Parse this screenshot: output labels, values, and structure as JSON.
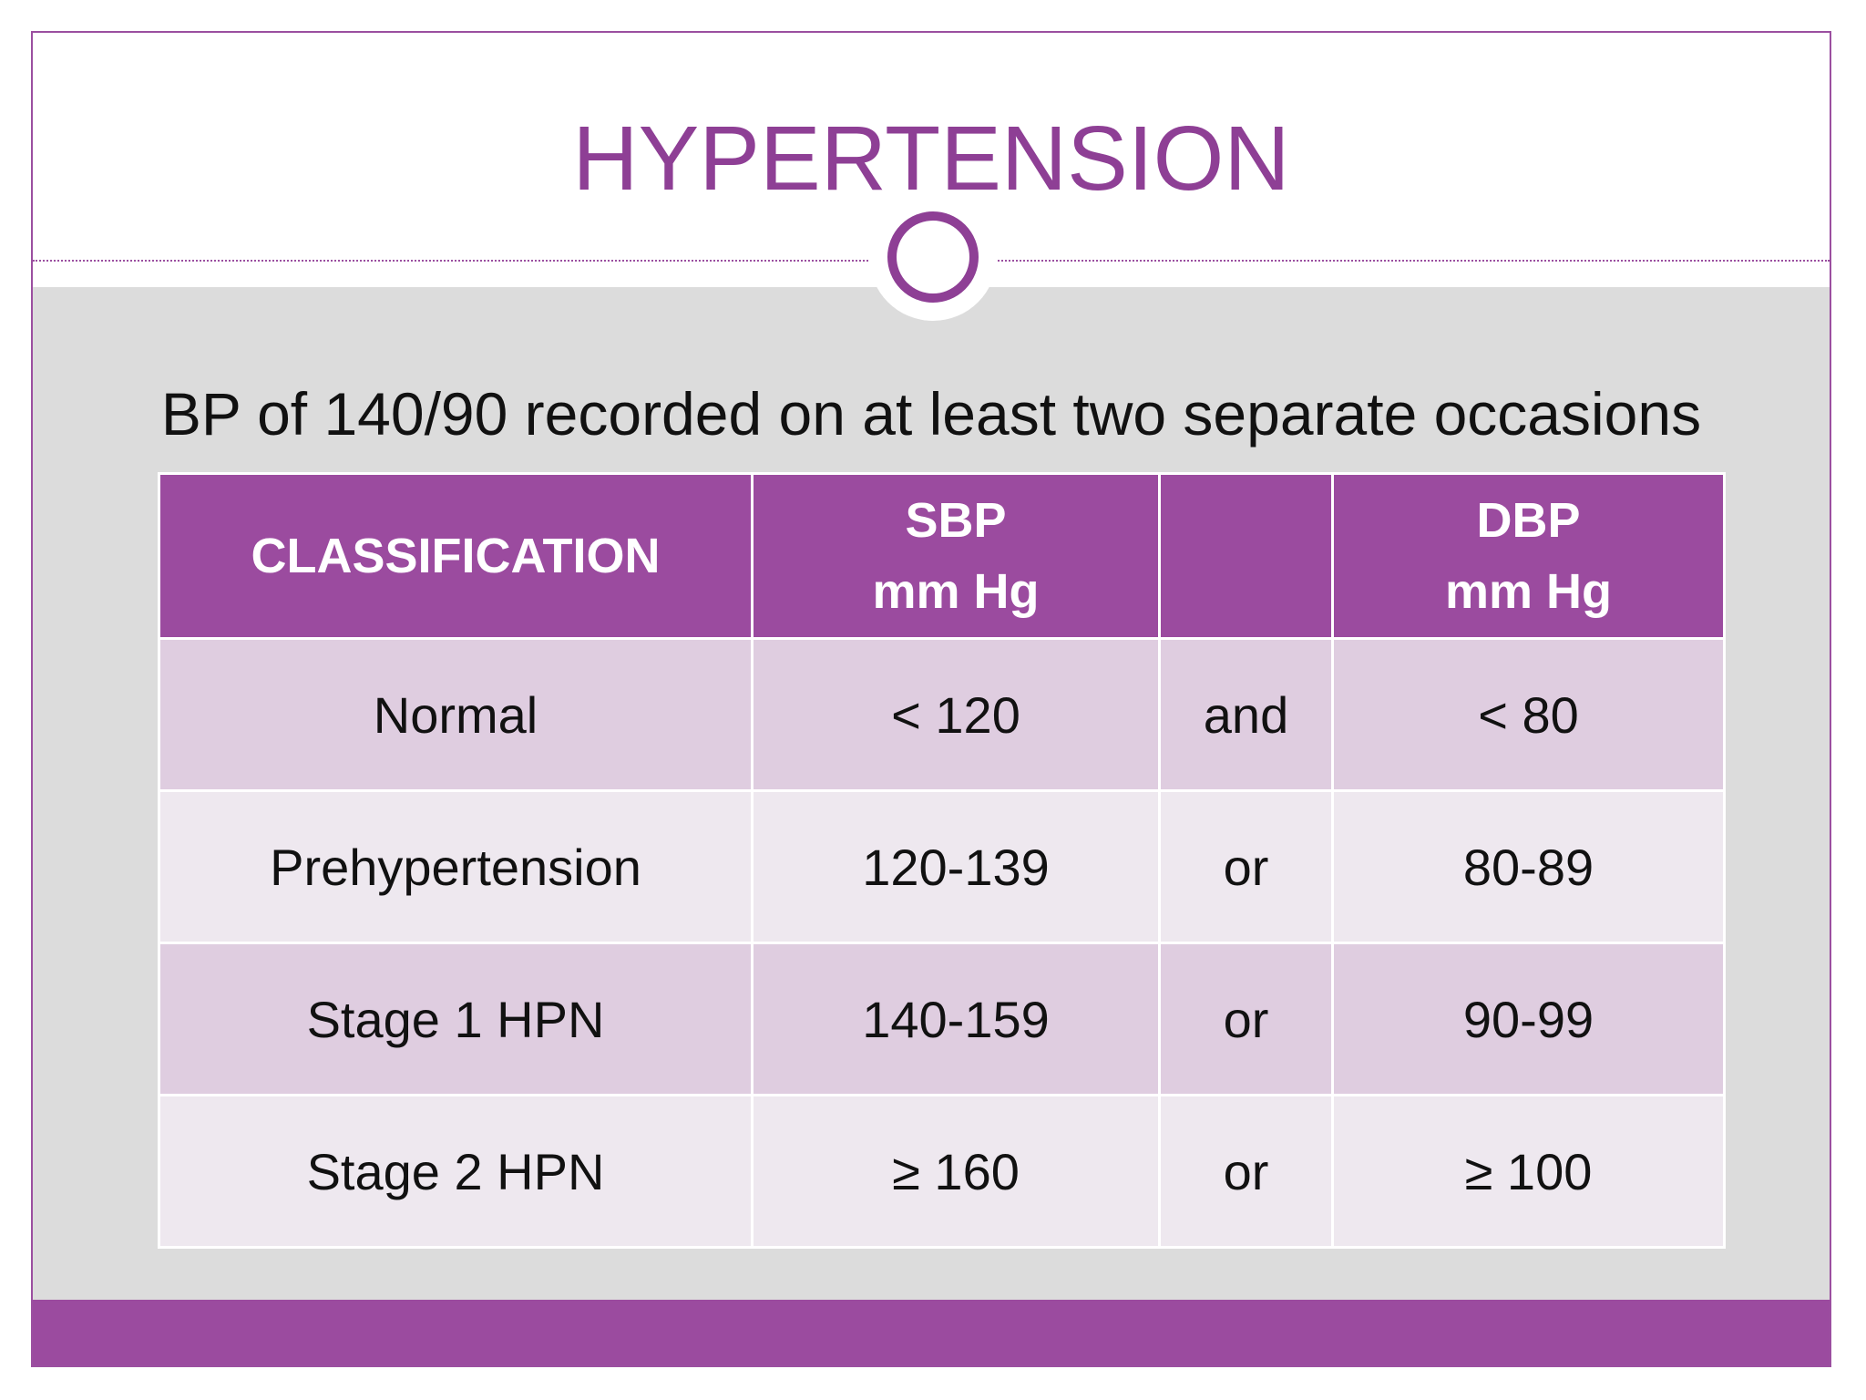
{
  "header": {
    "title": "HYPERTENSION"
  },
  "subtitle": "BP of 140/90 recorded on at least two separate occasions",
  "table": {
    "columns": [
      [
        "CLASSIFICATION"
      ],
      [
        "SBP",
        "mm Hg"
      ],
      [
        "DBP",
        "mm Hg"
      ]
    ],
    "rows": [
      [
        "Normal",
        "< 120",
        "and",
        "< 80"
      ],
      [
        "Prehypertension",
        "120-139",
        "or",
        "80-89"
      ],
      [
        "Stage 1 HPN",
        "140-159",
        "or",
        "90-99"
      ],
      [
        "Stage 2 HPN",
        "≥ 160",
        "or",
        "≥ 100"
      ]
    ]
  }
}
